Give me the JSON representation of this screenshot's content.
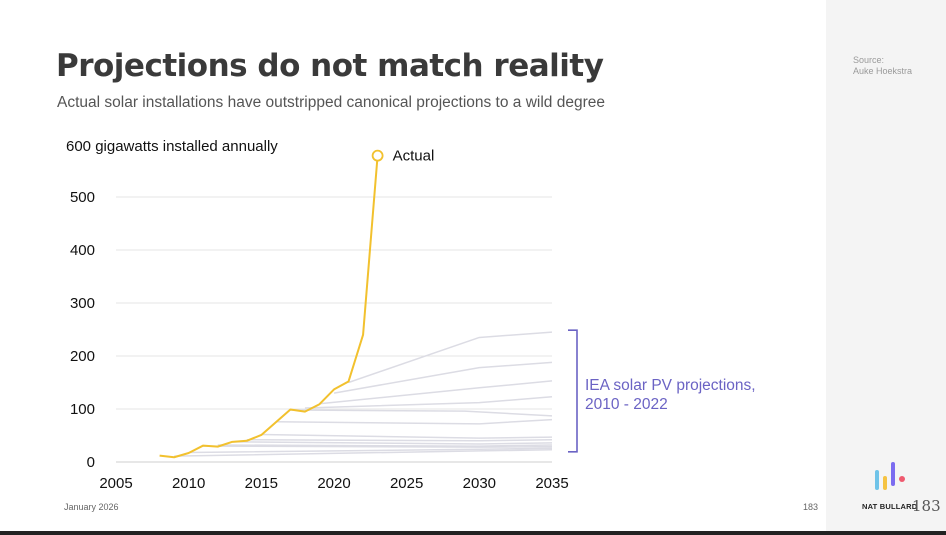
{
  "slide": {
    "title": "Projections do not match reality",
    "subtitle": "Actual solar installations have outstripped canonical projections to a wild degree",
    "source_line1": "Source:",
    "source_line2": "Auke Hoekstra",
    "date": "January 2026",
    "page_number": "183",
    "slide_number": "183",
    "brand": "NAT BULLARD",
    "logo_bar_colors": [
      "#6fc3e8",
      "#f5c342",
      "#7b6cf0",
      "#ef5a6f"
    ]
  },
  "chart_data": {
    "type": "line",
    "title": "Projections do not match reality",
    "subtitle": "Actual solar installations have outstripped canonical projections to a wild degree",
    "ylabel": "gigawatts installed annually",
    "top_label": "600 gigawatts installed annually",
    "xlim": [
      2005,
      2035
    ],
    "ylim": [
      0,
      600
    ],
    "x_ticks": [
      2005,
      2010,
      2015,
      2020,
      2025,
      2030,
      2035
    ],
    "y_ticks": [
      0,
      100,
      200,
      300,
      400,
      500
    ],
    "grid": "horizontal",
    "colors": {
      "actual": "#f2c12e",
      "projections": "#dcdce4",
      "bracket": "#6b63c4"
    },
    "actual": {
      "name": "Actual",
      "x": [
        2008,
        2009,
        2010,
        2011,
        2012,
        2013,
        2014,
        2015,
        2016,
        2017,
        2018,
        2019,
        2020,
        2021,
        2022,
        2023
      ],
      "y": [
        12,
        9,
        17,
        31,
        29,
        38,
        40,
        51,
        75,
        99,
        95,
        109,
        137,
        152,
        240,
        578
      ]
    },
    "projections_label": "IEA solar PV projections, 2010 - 2022",
    "projections": [
      {
        "x": [
          2021,
          2030,
          2035
        ],
        "y": [
          150,
          235,
          245
        ]
      },
      {
        "x": [
          2020,
          2030,
          2035
        ],
        "y": [
          130,
          178,
          188
        ]
      },
      {
        "x": [
          2019,
          2030,
          2035
        ],
        "y": [
          110,
          140,
          153
        ]
      },
      {
        "x": [
          2018,
          2030,
          2035
        ],
        "y": [
          102,
          112,
          123
        ]
      },
      {
        "x": [
          2017,
          2029,
          2035
        ],
        "y": [
          98,
          96,
          87
        ]
      },
      {
        "x": [
          2016,
          2030,
          2035
        ],
        "y": [
          76,
          72,
          80
        ]
      },
      {
        "x": [
          2015,
          2030,
          2035
        ],
        "y": [
          52,
          45,
          47
        ]
      },
      {
        "x": [
          2014,
          2030,
          2035
        ],
        "y": [
          42,
          40,
          42
        ]
      },
      {
        "x": [
          2013,
          2030,
          2035
        ],
        "y": [
          38,
          34,
          36
        ]
      },
      {
        "x": [
          2012,
          2030,
          2035
        ],
        "y": [
          32,
          30,
          32
        ]
      },
      {
        "x": [
          2011,
          2030,
          2035
        ],
        "y": [
          30,
          28,
          29
        ]
      },
      {
        "x": [
          2010,
          2030,
          2035
        ],
        "y": [
          18,
          24,
          26
        ]
      },
      {
        "x": [
          2009,
          2030,
          2035
        ],
        "y": [
          11,
          21,
          23
        ]
      }
    ]
  }
}
